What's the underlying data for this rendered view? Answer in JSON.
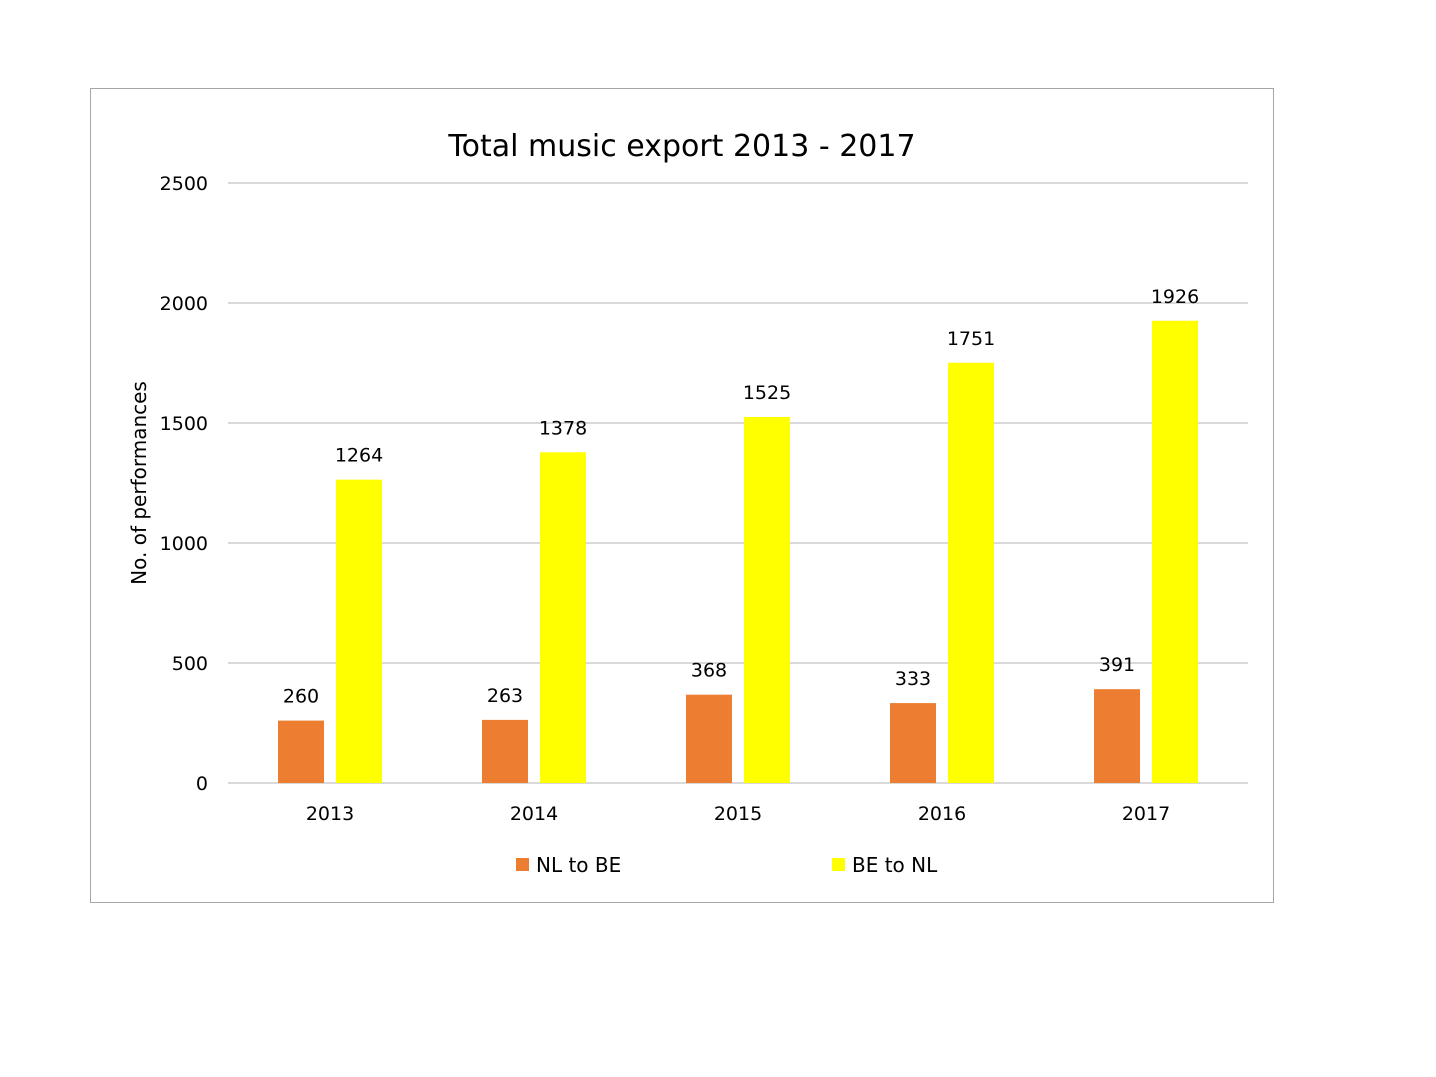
{
  "chart_data": {
    "type": "bar",
    "title": "Total music export 2013 - 2017",
    "xlabel": "",
    "ylabel": "No. of performances",
    "categories": [
      "2013",
      "2014",
      "2015",
      "2016",
      "2017"
    ],
    "ylim": [
      0,
      2500
    ],
    "yticks": [
      0,
      500,
      1000,
      1500,
      2000,
      2500
    ],
    "grid": true,
    "legend_position": "bottom",
    "series": [
      {
        "name": "NL to BE",
        "color": "#ed7d31",
        "values": [
          260,
          263,
          368,
          333,
          391
        ]
      },
      {
        "name": "BE to NL",
        "color": "#ffff00",
        "values": [
          1264,
          1378,
          1525,
          1751,
          1926
        ]
      }
    ]
  }
}
